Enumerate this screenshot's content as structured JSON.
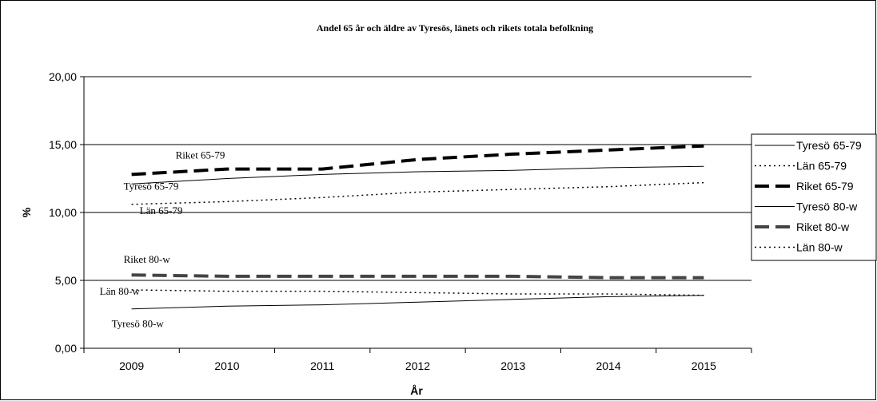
{
  "chart_data": {
    "type": "line",
    "title": "Andel 65 år och äldre av Tyresös, länets och rikets totala befolkning",
    "xlabel": "År",
    "ylabel": "%",
    "categories": [
      "2009",
      "2010",
      "2011",
      "2012",
      "2013",
      "2014",
      "2015"
    ],
    "ylim": [
      0,
      20
    ],
    "yticks": [
      "0,00",
      "5,00",
      "10,00",
      "15,00",
      "20,00"
    ],
    "ytick_values": [
      0,
      5,
      10,
      15,
      20
    ],
    "grid": "horizontal",
    "legend_position": "right",
    "series": [
      {
        "name": "Tyresö 65-79",
        "values": [
          12.1,
          12.5,
          12.8,
          13.0,
          13.1,
          13.3,
          13.4
        ],
        "color": "#000000",
        "style": "solid",
        "width": 1
      },
      {
        "name": "Län 65-79",
        "values": [
          10.6,
          10.8,
          11.1,
          11.5,
          11.7,
          11.9,
          12.2
        ],
        "color": "#000000",
        "style": "dotted",
        "width": 1.5
      },
      {
        "name": "Riket 65-79",
        "values": [
          12.8,
          13.2,
          13.2,
          13.9,
          14.3,
          14.6,
          14.9
        ],
        "color": "#000000",
        "style": "dashed",
        "width": 4
      },
      {
        "name": "Tyresö 80-w",
        "values": [
          2.9,
          3.1,
          3.2,
          3.4,
          3.6,
          3.8,
          3.9
        ],
        "color": "#000000",
        "style": "solid",
        "width": 1
      },
      {
        "name": "Riket 80-w",
        "values": [
          5.4,
          5.3,
          5.3,
          5.3,
          5.3,
          5.2,
          5.2
        ],
        "color": "#444444",
        "style": "dashed",
        "width": 4
      },
      {
        "name": "Län 80-w",
        "values": [
          4.3,
          4.2,
          4.2,
          4.1,
          4.0,
          4.0,
          3.9
        ],
        "color": "#000000",
        "style": "dotted",
        "width": 1.5
      }
    ],
    "annotations": [
      {
        "text": "Riket 65-79",
        "series": "Riket 65-79"
      },
      {
        "text": "Tyresö 65-79",
        "series": "Tyresö 65-79"
      },
      {
        "text": "Län 65-79",
        "series": "Län 65-79"
      },
      {
        "text": "Riket 80-w",
        "series": "Riket 80-w"
      },
      {
        "text": "Län 80-w",
        "series": "Län 80-w"
      },
      {
        "text": "Tyresö 80-w",
        "series": "Tyresö 80-w"
      }
    ]
  }
}
